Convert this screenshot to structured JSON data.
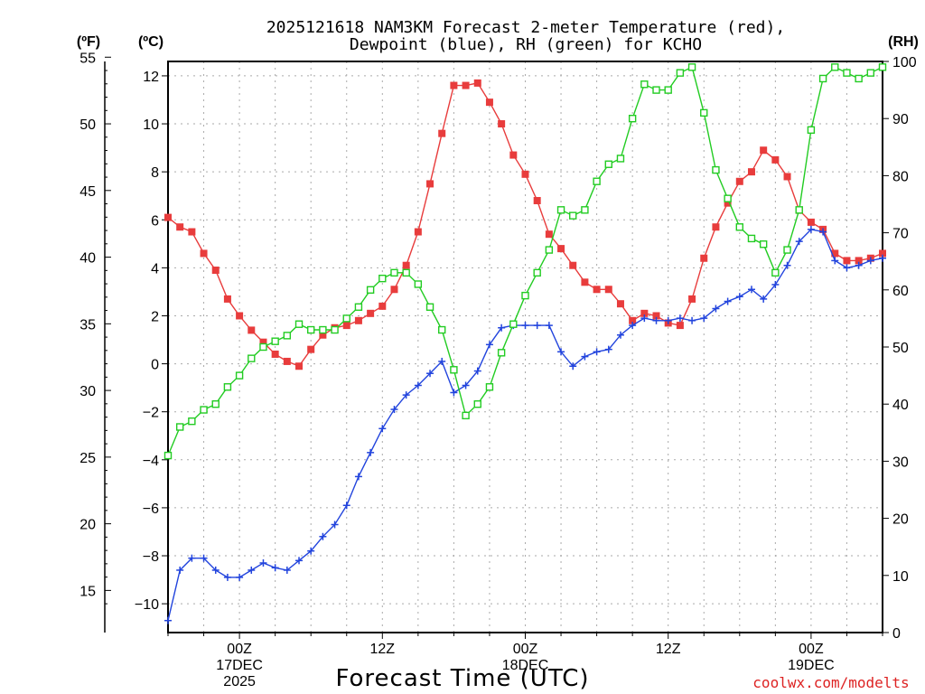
{
  "chart_data": {
    "type": "line",
    "title_line1": "2025121618 NAM3KM Forecast 2-meter Temperature (red),",
    "title_line2": "Dewpoint (blue), RH (green) for KCHO",
    "xlabel": "Forecast Time (UTC)",
    "credit": "coolwx.com/modelts",
    "y_unit_f": "(ºF)",
    "y_unit_c": "(ºC)",
    "y_unit_rh": "(RH)",
    "x_range_hours": [
      -6,
      54
    ],
    "x_ticks": [
      {
        "hour": 0,
        "lines": [
          "00Z",
          "17DEC",
          "2025"
        ]
      },
      {
        "hour": 12,
        "lines": [
          "12Z"
        ]
      },
      {
        "hour": 24,
        "lines": [
          "00Z",
          "18DEC"
        ]
      },
      {
        "hour": 36,
        "lines": [
          "12Z"
        ]
      },
      {
        "hour": 48,
        "lines": [
          "00Z",
          "19DEC"
        ]
      }
    ],
    "ylim_c": [
      -11.2,
      12.6
    ],
    "ylim_rh": [
      0,
      100
    ],
    "celsius_ticks": [
      -10,
      -8,
      -6,
      -4,
      -2,
      0,
      2,
      4,
      6,
      8,
      10,
      12
    ],
    "fahrenheit_ticks": [
      15,
      20,
      25,
      30,
      35,
      40,
      45,
      50,
      55
    ],
    "rh_ticks": [
      0,
      10,
      20,
      30,
      40,
      50,
      60,
      70,
      80,
      90,
      100
    ],
    "hours": [
      -6,
      -5,
      -4,
      -3,
      -2,
      -1,
      0,
      1,
      2,
      3,
      4,
      5,
      6,
      7,
      8,
      9,
      10,
      11,
      12,
      13,
      14,
      15,
      16,
      17,
      18,
      19,
      20,
      21,
      22,
      23,
      24,
      25,
      26,
      27,
      28,
      29,
      30,
      31,
      32,
      33,
      34,
      35,
      36,
      37,
      38,
      39,
      40,
      41,
      42,
      43,
      44,
      45,
      46,
      47,
      48,
      49,
      50,
      51,
      52,
      53,
      54
    ],
    "series": [
      {
        "name": "Temperature",
        "unit": "C",
        "color": "#e83c3c",
        "marker": "filled-square",
        "values": [
          6.1,
          5.7,
          5.5,
          4.6,
          3.9,
          2.7,
          2.0,
          1.4,
          0.9,
          0.4,
          0.1,
          -0.1,
          0.6,
          1.2,
          1.5,
          1.6,
          1.8,
          2.1,
          2.4,
          3.1,
          4.1,
          5.5,
          7.5,
          9.6,
          11.6,
          11.6,
          11.7,
          10.9,
          10.0,
          8.7,
          7.9,
          6.8,
          5.4,
          4.8,
          4.1,
          3.4,
          3.1,
          3.1,
          2.5,
          1.8,
          2.1,
          2.0,
          1.7,
          1.6,
          2.7,
          4.4,
          5.7,
          6.7,
          7.6,
          8.0,
          8.9,
          8.5,
          7.8,
          6.4,
          5.9,
          5.6,
          4.6,
          4.3,
          4.3,
          4.4,
          4.6
        ]
      },
      {
        "name": "Dewpoint",
        "unit": "C",
        "color": "#2244dd",
        "marker": "plus",
        "values": [
          -10.7,
          -8.6,
          -8.1,
          -8.1,
          -8.6,
          -8.9,
          -8.9,
          -8.6,
          -8.3,
          -8.5,
          -8.6,
          -8.2,
          -7.8,
          -7.2,
          -6.7,
          -5.9,
          -4.7,
          -3.7,
          -2.7,
          -1.9,
          -1.3,
          -0.9,
          -0.4,
          0.1,
          -1.2,
          -0.9,
          -0.3,
          0.8,
          1.5,
          1.6,
          1.6,
          1.6,
          1.6,
          0.5,
          -0.1,
          0.3,
          0.5,
          0.6,
          1.2,
          1.6,
          1.9,
          1.8,
          1.8,
          1.9,
          1.8,
          1.9,
          2.3,
          2.6,
          2.8,
          3.1,
          2.7,
          3.3,
          4.1,
          5.1,
          5.6,
          5.5,
          4.3,
          4.0,
          4.1,
          4.3,
          4.4
        ]
      },
      {
        "name": "RH",
        "unit": "%",
        "color": "#22cc22",
        "marker": "open-square",
        "values": [
          31,
          36,
          37,
          39,
          40,
          43,
          45,
          48,
          50,
          51,
          52,
          54,
          53,
          53,
          53,
          55,
          57,
          60,
          62,
          63,
          63,
          61,
          57,
          53,
          46,
          38,
          40,
          43,
          49,
          54,
          59,
          63,
          67,
          74,
          73,
          74,
          79,
          82,
          83,
          90,
          96,
          95,
          95,
          98,
          99,
          91,
          81,
          76,
          71,
          69,
          68,
          63,
          67,
          74,
          88,
          97,
          99,
          98,
          97,
          98,
          99
        ]
      }
    ]
  }
}
